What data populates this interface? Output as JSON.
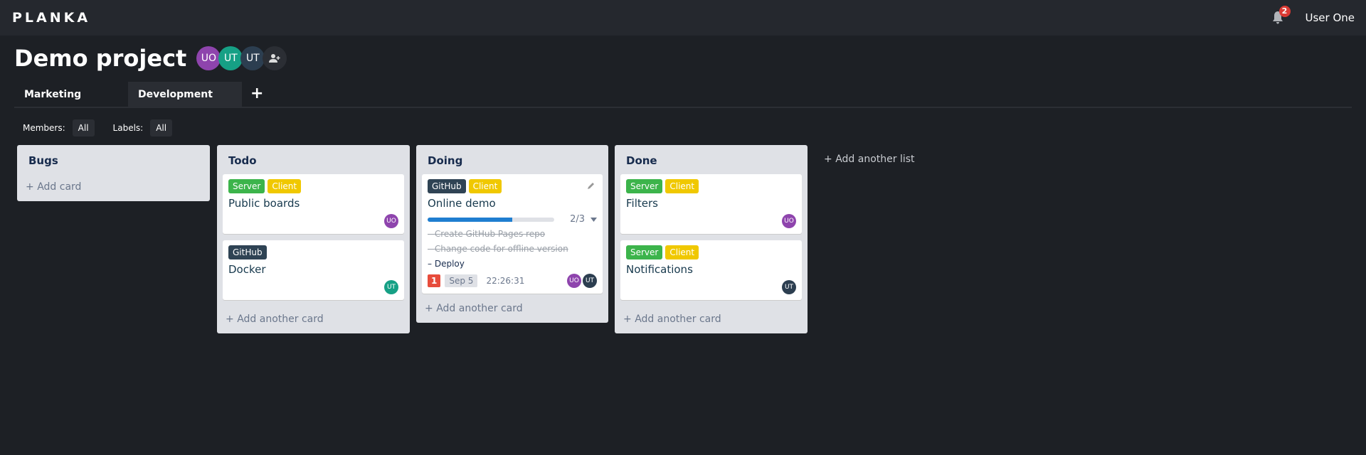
{
  "header": {
    "logo": "PLANKA",
    "notifications": "2",
    "user": "User One"
  },
  "project": {
    "title": "Demo project",
    "members": [
      {
        "initials": "UO",
        "color": "#8e44ad"
      },
      {
        "initials": "UT",
        "color": "#16a085"
      },
      {
        "initials": "UT",
        "color": "#2c3e50"
      }
    ]
  },
  "tabs": [
    {
      "label": "Marketing",
      "active": false
    },
    {
      "label": "Development",
      "active": true
    }
  ],
  "filters": {
    "members_label": "Members:",
    "members_value": "All",
    "labels_label": "Labels:",
    "labels_value": "All"
  },
  "colors": {
    "server": "#3cb44b",
    "client": "#f0c800",
    "github": "#2f4354",
    "uo": "#8e44ad",
    "ut_green": "#16a085",
    "ut_dark": "#2c3e50",
    "due": "#e74c3c"
  },
  "lists": [
    {
      "title": "Bugs",
      "add": "Add card",
      "cards": []
    },
    {
      "title": "Todo",
      "add": "Add another card",
      "cards": [
        {
          "labels": [
            "Server",
            "Client"
          ],
          "title": "Public boards",
          "members": [
            "UO"
          ]
        },
        {
          "labels": [
            "GitHub"
          ],
          "title": "Docker",
          "members": [
            "UT"
          ]
        }
      ]
    },
    {
      "title": "Doing",
      "add": "Add another card",
      "cards": [
        {
          "labels": [
            "GitHub",
            "Client"
          ],
          "title": "Online demo",
          "progress": "2/3",
          "progress_fraction": 0.667,
          "tasks": [
            {
              "text": "Create GitHub Pages repo",
              "done": true
            },
            {
              "text": "Change code for offline version",
              "done": true
            },
            {
              "text": "Deploy",
              "done": false
            }
          ],
          "count": "1",
          "due": "Sep 5",
          "timer": "22:26:31",
          "members": [
            "UO",
            "UT"
          ]
        }
      ]
    },
    {
      "title": "Done",
      "add": "Add another card",
      "cards": [
        {
          "labels": [
            "Server",
            "Client"
          ],
          "title": "Filters",
          "members": [
            "UO"
          ]
        },
        {
          "labels": [
            "Server",
            "Client"
          ],
          "title": "Notifications",
          "members": [
            "UT"
          ]
        }
      ]
    }
  ],
  "add_list": "Add another list"
}
